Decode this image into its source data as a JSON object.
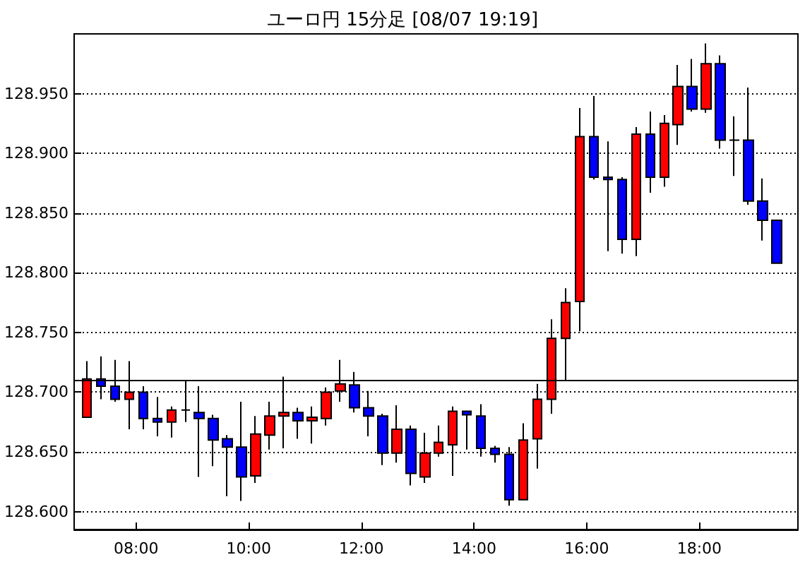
{
  "chart_data": {
    "type": "candlestick",
    "title": "ユーロ円 15分足 [08/07 19:19]",
    "x": [
      7.125,
      7.375,
      7.625,
      7.875,
      8.125,
      8.375,
      8.625,
      8.875,
      9.125,
      9.375,
      9.625,
      9.875,
      10.125,
      10.375,
      10.625,
      10.875,
      11.125,
      11.375,
      11.625,
      11.875,
      12.125,
      12.375,
      12.625,
      12.875,
      13.125,
      13.375,
      13.625,
      13.875,
      14.125,
      14.375,
      14.625,
      14.875,
      15.125,
      15.375,
      15.625,
      15.875,
      16.125,
      16.375,
      16.625,
      16.875,
      17.125,
      17.375,
      17.625,
      17.875,
      18.125,
      18.375,
      18.625,
      18.875,
      19.125,
      19.375
    ],
    "ohlc": [
      [
        128.679,
        128.726,
        128.679,
        128.711
      ],
      [
        128.711,
        128.73,
        128.694,
        128.705
      ],
      [
        128.705,
        128.727,
        128.692,
        128.694
      ],
      [
        128.694,
        128.726,
        128.669,
        128.7
      ],
      [
        128.7,
        128.705,
        128.669,
        128.678
      ],
      [
        128.678,
        128.696,
        128.663,
        128.675
      ],
      [
        128.675,
        128.688,
        128.662,
        128.685
      ],
      [
        128.685,
        128.71,
        128.675,
        128.685
      ],
      [
        128.683,
        128.705,
        128.629,
        128.678
      ],
      [
        128.678,
        128.681,
        128.638,
        128.66
      ],
      [
        128.661,
        128.664,
        128.613,
        128.654
      ],
      [
        128.654,
        128.692,
        128.609,
        128.629
      ],
      [
        128.63,
        128.68,
        128.624,
        128.665
      ],
      [
        128.664,
        128.692,
        128.652,
        128.68
      ],
      [
        128.68,
        128.713,
        128.653,
        128.683
      ],
      [
        128.683,
        128.687,
        128.661,
        128.676
      ],
      [
        128.676,
        128.688,
        128.657,
        128.679
      ],
      [
        128.678,
        128.704,
        128.672,
        128.7
      ],
      [
        128.701,
        128.727,
        128.692,
        128.707
      ],
      [
        128.706,
        128.717,
        128.683,
        128.687
      ],
      [
        128.687,
        128.701,
        128.663,
        128.68
      ],
      [
        128.68,
        128.682,
        128.639,
        128.649
      ],
      [
        128.649,
        128.689,
        128.641,
        128.669
      ],
      [
        128.669,
        128.672,
        128.622,
        128.632
      ],
      [
        128.629,
        128.666,
        128.624,
        128.649
      ],
      [
        128.649,
        128.672,
        128.646,
        128.658
      ],
      [
        128.656,
        128.688,
        128.63,
        128.684
      ],
      [
        128.684,
        128.684,
        128.652,
        128.681
      ],
      [
        128.68,
        128.69,
        128.646,
        128.653
      ],
      [
        128.653,
        128.655,
        128.641,
        128.648
      ],
      [
        128.648,
        128.654,
        128.605,
        128.61
      ],
      [
        128.61,
        128.674,
        128.61,
        128.66
      ],
      [
        128.661,
        128.707,
        128.636,
        128.694
      ],
      [
        128.694,
        128.761,
        128.682,
        128.745
      ],
      [
        128.745,
        128.787,
        128.71,
        128.775
      ],
      [
        128.776,
        128.938,
        128.751,
        128.914
      ],
      [
        128.914,
        128.948,
        128.878,
        128.88
      ],
      [
        128.88,
        128.91,
        128.818,
        128.878
      ],
      [
        128.878,
        128.88,
        128.816,
        128.828
      ],
      [
        128.828,
        128.922,
        128.814,
        128.916
      ],
      [
        128.916,
        128.935,
        128.867,
        128.88
      ],
      [
        128.88,
        128.932,
        128.872,
        128.925
      ],
      [
        128.924,
        128.974,
        128.907,
        128.956
      ],
      [
        128.956,
        128.979,
        128.935,
        128.937
      ],
      [
        128.937,
        128.992,
        128.934,
        128.975
      ],
      [
        128.975,
        128.982,
        128.904,
        128.911
      ],
      [
        128.911,
        128.931,
        128.881,
        128.911
      ],
      [
        128.911,
        128.955,
        128.857,
        128.86
      ],
      [
        128.86,
        128.879,
        128.827,
        128.844
      ],
      [
        128.844,
        128.844,
        128.808,
        128.808
      ]
    ],
    "colors": [
      "#ff0000",
      "#0000ff",
      "#0000ff",
      "#ff0000",
      "#0000ff",
      "#0000ff",
      "#ff0000",
      "#000000",
      "#0000ff",
      "#0000ff",
      "#0000ff",
      "#0000ff",
      "#ff0000",
      "#ff0000",
      "#ff0000",
      "#0000ff",
      "#ff0000",
      "#ff0000",
      "#ff0000",
      "#0000ff",
      "#0000ff",
      "#0000ff",
      "#ff0000",
      "#0000ff",
      "#ff0000",
      "#ff0000",
      "#ff0000",
      "#0000ff",
      "#0000ff",
      "#0000ff",
      "#0000ff",
      "#ff0000",
      "#ff0000",
      "#ff0000",
      "#ff0000",
      "#ff0000",
      "#0000ff",
      "#0000ff",
      "#0000ff",
      "#ff0000",
      "#0000ff",
      "#ff0000",
      "#ff0000",
      "#0000ff",
      "#ff0000",
      "#0000ff",
      "#000000",
      "#0000ff",
      "#0000ff",
      "#0000ff"
    ],
    "xlim": [
      6.9,
      19.75
    ],
    "xticks": [
      {
        "value": 8,
        "label": "08:00"
      },
      {
        "value": 10,
        "label": "10:00"
      },
      {
        "value": 12,
        "label": "12:00"
      },
      {
        "value": 14,
        "label": "14:00"
      },
      {
        "value": 16,
        "label": "16:00"
      },
      {
        "value": 18,
        "label": "18:00"
      }
    ],
    "ylim": [
      128.585,
      129.0
    ],
    "yticks": [
      {
        "value": 128.6,
        "label": "128.600"
      },
      {
        "value": 128.65,
        "label": "128.650"
      },
      {
        "value": 128.7,
        "label": "128.700"
      },
      {
        "value": 128.75,
        "label": "128.750"
      },
      {
        "value": 128.8,
        "label": "128.800"
      },
      {
        "value": 128.85,
        "label": "128.850"
      },
      {
        "value": 128.9,
        "label": "128.900"
      },
      {
        "value": 128.95,
        "label": "128.950"
      }
    ],
    "ref_lines": [
      {
        "axis": "y",
        "value": 128.71,
        "label": null,
        "color": "#000000",
        "line_style": "solid"
      }
    ],
    "grid": "y"
  }
}
